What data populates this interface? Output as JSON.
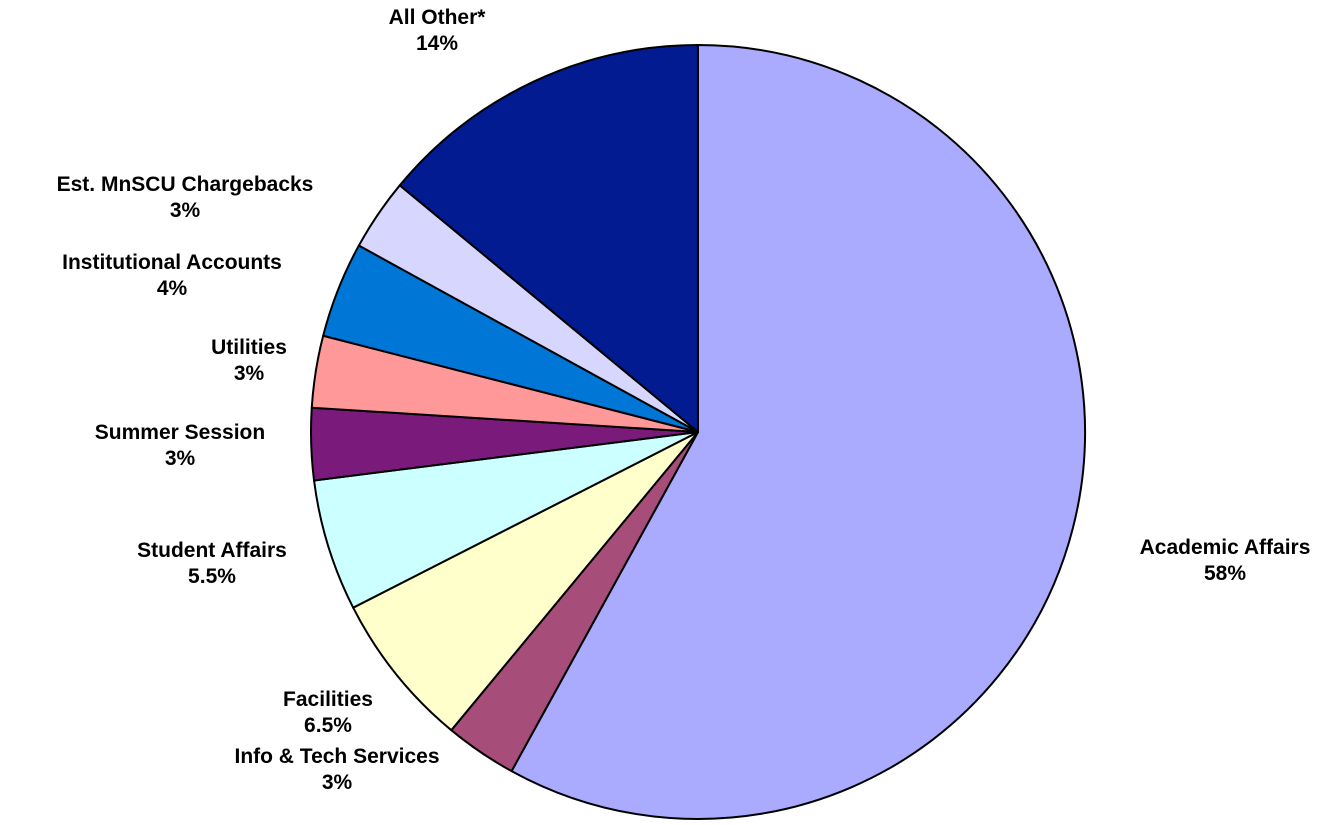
{
  "chart_data": {
    "type": "pie",
    "title": "",
    "slices": [
      {
        "label": "Academic Affairs",
        "value": 58,
        "display": "58%",
        "color": "#AAAAFF"
      },
      {
        "label": "Info & Tech Services",
        "value": 3,
        "display": "3%",
        "color": "#A64D79"
      },
      {
        "label": "Facilities",
        "value": 6.5,
        "display": "6.5%",
        "color": "#FFFFCC"
      },
      {
        "label": "Student Affairs",
        "value": 5.5,
        "display": "5.5%",
        "color": "#CCFFFF"
      },
      {
        "label": "Summer Session",
        "value": 3,
        "display": "3%",
        "color": "#7A1A7A"
      },
      {
        "label": "Utilities",
        "value": 3,
        "display": "3%",
        "color": "#FF9999"
      },
      {
        "label": "Institutional Accounts",
        "value": 4,
        "display": "4%",
        "color": "#0077D6"
      },
      {
        "label": "Est. MnSCU Chargebacks",
        "value": 3,
        "display": "3%",
        "color": "#D6D6FF"
      },
      {
        "label": "All Other*",
        "value": 14,
        "display": "14%",
        "color": "#021B91"
      }
    ],
    "start_angle": "12 o'clock",
    "direction": "clockwise",
    "legend": "none"
  }
}
